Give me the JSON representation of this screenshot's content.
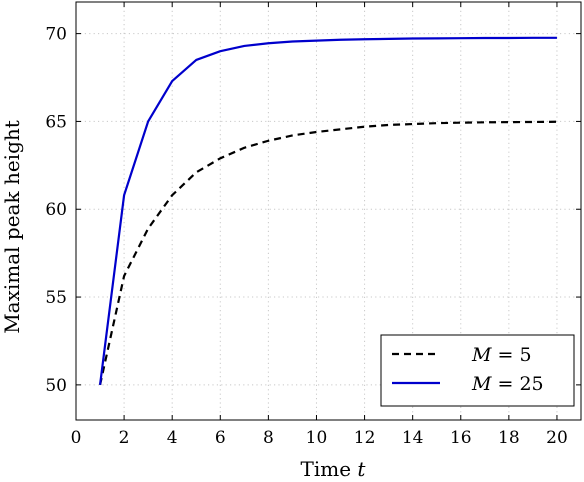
{
  "chart_data": {
    "type": "line",
    "title": "",
    "xlabel": "Time",
    "xlabel_var": "t",
    "ylabel": "Maximal peak height",
    "xlim": [
      0,
      21
    ],
    "ylim": [
      48,
      71.8
    ],
    "xticks": [
      0,
      2,
      4,
      6,
      8,
      10,
      12,
      14,
      16,
      18,
      20
    ],
    "yticks": [
      50,
      55,
      60,
      65,
      70
    ],
    "grid": true,
    "legend_position": "bottom-right",
    "series": [
      {
        "name_var": "M",
        "name_rest": " = 5",
        "color": "#000000",
        "style": "dashed",
        "x": [
          1,
          2,
          3,
          4,
          5,
          6,
          7,
          8,
          9,
          10,
          11,
          12,
          13,
          14,
          15,
          16,
          17,
          18,
          19,
          20
        ],
        "y": [
          50.0,
          56.2,
          58.9,
          60.8,
          62.1,
          62.9,
          63.5,
          63.9,
          64.2,
          64.4,
          64.55,
          64.7,
          64.8,
          64.85,
          64.9,
          64.93,
          64.95,
          64.96,
          64.97,
          64.98
        ]
      },
      {
        "name_var": "M",
        "name_rest": " = 25",
        "color": "#0000cc",
        "style": "solid",
        "x": [
          1,
          2,
          3,
          4,
          5,
          6,
          7,
          8,
          9,
          10,
          11,
          12,
          13,
          14,
          15,
          16,
          17,
          18,
          19,
          20
        ],
        "y": [
          50.0,
          60.8,
          65.0,
          67.3,
          68.5,
          69.0,
          69.3,
          69.45,
          69.55,
          69.6,
          69.65,
          69.68,
          69.7,
          69.72,
          69.73,
          69.74,
          69.75,
          69.75,
          69.76,
          69.76
        ]
      }
    ]
  }
}
